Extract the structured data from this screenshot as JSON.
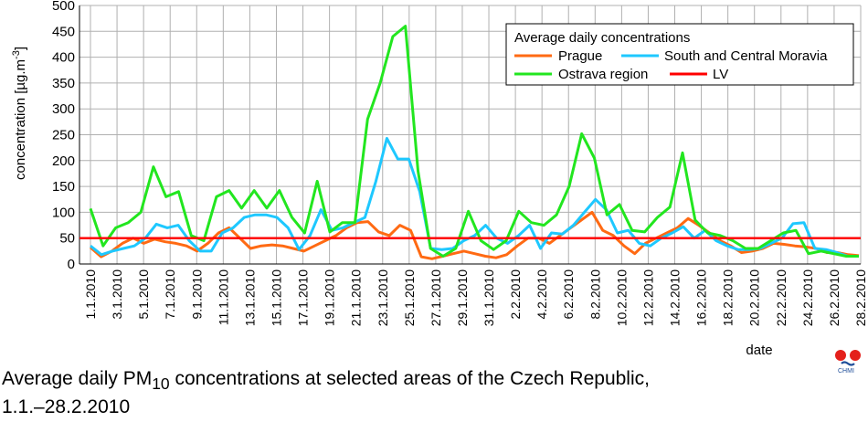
{
  "chart_data": {
    "type": "line",
    "title": "",
    "xlabel": "date",
    "ylabel": "concentration [µg.m⁻³]",
    "ylabel_main": "concentration [µg.m",
    "ylabel_sup": "-3",
    "ylabel_end": "]",
    "ylim": [
      0,
      500
    ],
    "yticks": [
      0,
      50,
      100,
      150,
      200,
      250,
      300,
      350,
      400,
      450,
      500
    ],
    "grid": true,
    "legend_title": "Average daily concentrations",
    "legend_position": "top-right",
    "x_tick_labels": [
      "1.1.2010",
      "3.1.2010",
      "5.1.2010",
      "7.1.2010",
      "9.1.2010",
      "11.1.2010",
      "13.1.2010",
      "15.1.2010",
      "17.1.2010",
      "19.1.2010",
      "21.1.2010",
      "23.1.2010",
      "25.1.2010",
      "27.1.2010",
      "29.1.2010",
      "31.1.2010",
      "2.2.2010",
      "4.2.2010",
      "6.2.2010",
      "8.2.2010",
      "10.2.2010",
      "12.2.2010",
      "14.2.2010",
      "16.2.2010",
      "18.2.2010",
      "20.2.2010",
      "22.2.2010",
      "24.2.2010",
      "26.2.2010",
      "28.2.2010"
    ],
    "series": [
      {
        "name": "Prague",
        "color": "#ff6a13",
        "values": [
          32,
          14,
          25,
          40,
          50,
          40,
          48,
          43,
          40,
          35,
          25,
          40,
          60,
          70,
          50,
          30,
          35,
          37,
          35,
          30,
          25,
          35,
          45,
          55,
          70,
          80,
          82,
          62,
          55,
          75,
          65,
          14,
          10,
          15,
          20,
          25,
          20,
          15,
          12,
          18,
          35,
          50,
          50,
          40,
          55,
          70,
          85,
          100,
          65,
          55,
          35,
          20,
          40,
          50,
          60,
          70,
          88,
          75,
          60,
          45,
          35,
          22,
          25,
          30,
          40,
          38,
          35,
          33,
          30,
          22,
          22,
          18,
          16
        ]
      },
      {
        "name": "South and Central Moravia",
        "color": "#1ec8ff",
        "values": [
          35,
          18,
          25,
          30,
          35,
          50,
          77,
          70,
          75,
          45,
          25,
          25,
          60,
          70,
          90,
          95,
          95,
          90,
          70,
          28,
          55,
          105,
          65,
          70,
          80,
          90,
          160,
          243,
          203,
          203,
          140,
          30,
          28,
          30,
          45,
          55,
          75,
          50,
          40,
          55,
          75,
          30,
          60,
          58,
          75,
          100,
          125,
          105,
          60,
          65,
          40,
          35,
          50,
          60,
          72,
          50,
          65,
          45,
          35,
          28,
          28,
          30,
          40,
          50,
          78,
          80,
          30,
          28,
          22,
          15,
          15
        ]
      },
      {
        "name": "Ostrava region",
        "color": "#22e61f",
        "values": [
          107,
          35,
          70,
          80,
          100,
          188,
          130,
          140,
          55,
          45,
          130,
          142,
          108,
          142,
          108,
          142,
          90,
          60,
          160,
          62,
          80,
          80,
          280,
          350,
          440,
          460,
          180,
          30,
          15,
          30,
          102,
          45,
          28,
          45,
          102,
          80,
          75,
          95,
          150,
          252,
          205,
          95,
          115,
          65,
          62,
          90,
          110,
          215,
          85,
          60,
          55,
          45,
          30,
          30,
          45,
          60,
          65,
          20,
          25,
          20,
          15,
          15
        ]
      },
      {
        "name": "LV",
        "color": "#ff0000",
        "values": [
          50,
          50
        ]
      }
    ]
  },
  "caption": {
    "pre": "Average daily PM",
    "sub": "10",
    "post": " concentrations at selected areas of the Czech Republic,",
    "line2": "1.1.–28.2.2010"
  },
  "logo": {
    "text": "CHMI"
  }
}
